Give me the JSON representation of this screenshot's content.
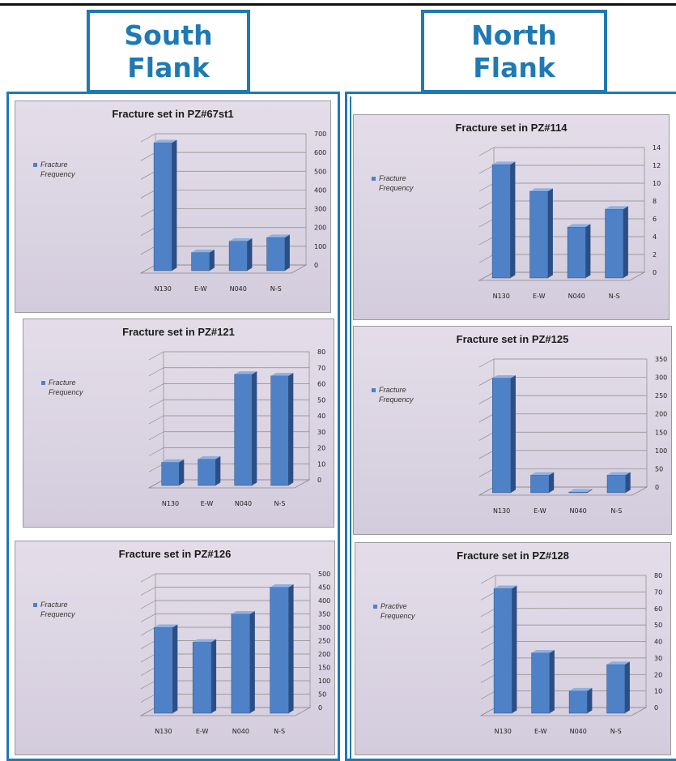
{
  "headers": {
    "south_line1": "South",
    "south_line2": "Flank",
    "north_line1": "North",
    "north_line2": "Flank"
  },
  "colors": {
    "frame": "#1f79b3",
    "bar_front": "#4f81c7",
    "bar_side": "#2a4f86",
    "bar_top": "#8fb0e0"
  },
  "chart_data": [
    {
      "id": "pz67st1",
      "type": "bar",
      "title": "Fracture set in PZ#67st1",
      "categories": [
        "N130",
        "E-W",
        "N040",
        "N-S"
      ],
      "series": [
        {
          "name": "Fracture Frequency",
          "values": [
            695,
            110,
            170,
            190
          ]
        }
      ],
      "ylim": [
        0,
        700
      ],
      "yticks": [
        "0",
        "100",
        "200",
        "300",
        "400",
        "500",
        "600",
        "700"
      ],
      "legend_label": [
        "Fracture",
        "Frequency"
      ],
      "legend_position": "left",
      "grid": true
    },
    {
      "id": "pz121",
      "type": "bar",
      "title": "Fracture set in PZ#121",
      "categories": [
        "N130",
        "E-W",
        "N040",
        "N-S"
      ],
      "series": [
        {
          "name": "Fracture Frequency",
          "values": [
            16,
            18,
            71,
            70
          ]
        }
      ],
      "ylim": [
        0,
        80
      ],
      "yticks": [
        "0",
        "10",
        "20",
        "30",
        "40",
        "50",
        "60",
        "70",
        "80"
      ],
      "legend_label": [
        "Fracture",
        "Frequency"
      ],
      "legend_position": "left",
      "grid": true
    },
    {
      "id": "pz126",
      "type": "bar",
      "title": "Fracture set in PZ#126",
      "categories": [
        "N130",
        "E-W",
        "N040",
        "N-S"
      ],
      "series": [
        {
          "name": "Fracture Frequency",
          "values": [
            330,
            275,
            380,
            480
          ]
        }
      ],
      "ylim": [
        0,
        500
      ],
      "yticks": [
        "0",
        "50",
        "100",
        "150",
        "200",
        "250",
        "300",
        "350",
        "400",
        "450",
        "500"
      ],
      "legend_label": [
        "Fracture",
        "Frequency"
      ],
      "legend_position": "left",
      "grid": true
    },
    {
      "id": "pz114",
      "type": "bar",
      "title": "Fracture set in PZ#114",
      "categories": [
        "N130",
        "E-W",
        "N040",
        "N-S"
      ],
      "series": [
        {
          "name": "Fracture Frequency",
          "values": [
            13,
            10,
            6,
            8
          ]
        }
      ],
      "ylim": [
        0,
        14
      ],
      "yticks": [
        "0",
        "2",
        "4",
        "6",
        "8",
        "10",
        "12",
        "14"
      ],
      "legend_label": [
        "Fracture",
        "Frequency"
      ],
      "legend_position": "left",
      "grid": true
    },
    {
      "id": "pz125",
      "type": "bar",
      "title": "Fracture set in PZ#125",
      "categories": [
        "N130",
        "E-W",
        "N040",
        "N-S"
      ],
      "series": [
        {
          "name": "Fracture Frequency",
          "values": [
            320,
            55,
            3,
            55
          ]
        }
      ],
      "ylim": [
        0,
        350
      ],
      "yticks": [
        "0",
        "50",
        "100",
        "150",
        "200",
        "250",
        "300",
        "350"
      ],
      "legend_label": [
        "Fracture",
        "Frequency"
      ],
      "legend_position": "left",
      "grid": true
    },
    {
      "id": "pz128",
      "type": "bar",
      "title": "Fracture set in PZ#128",
      "categories": [
        "N130",
        "E-W",
        "N040",
        "N-S"
      ],
      "series": [
        {
          "name": "Fracture Frequency",
          "values": [
            77,
            38,
            15,
            31
          ]
        }
      ],
      "ylim": [
        0,
        80
      ],
      "yticks": [
        "0",
        "10",
        "20",
        "30",
        "40",
        "50",
        "60",
        "70",
        "80"
      ],
      "legend_label": [
        "Practive",
        "Frequency"
      ],
      "legend_position": "left",
      "grid": true
    }
  ]
}
